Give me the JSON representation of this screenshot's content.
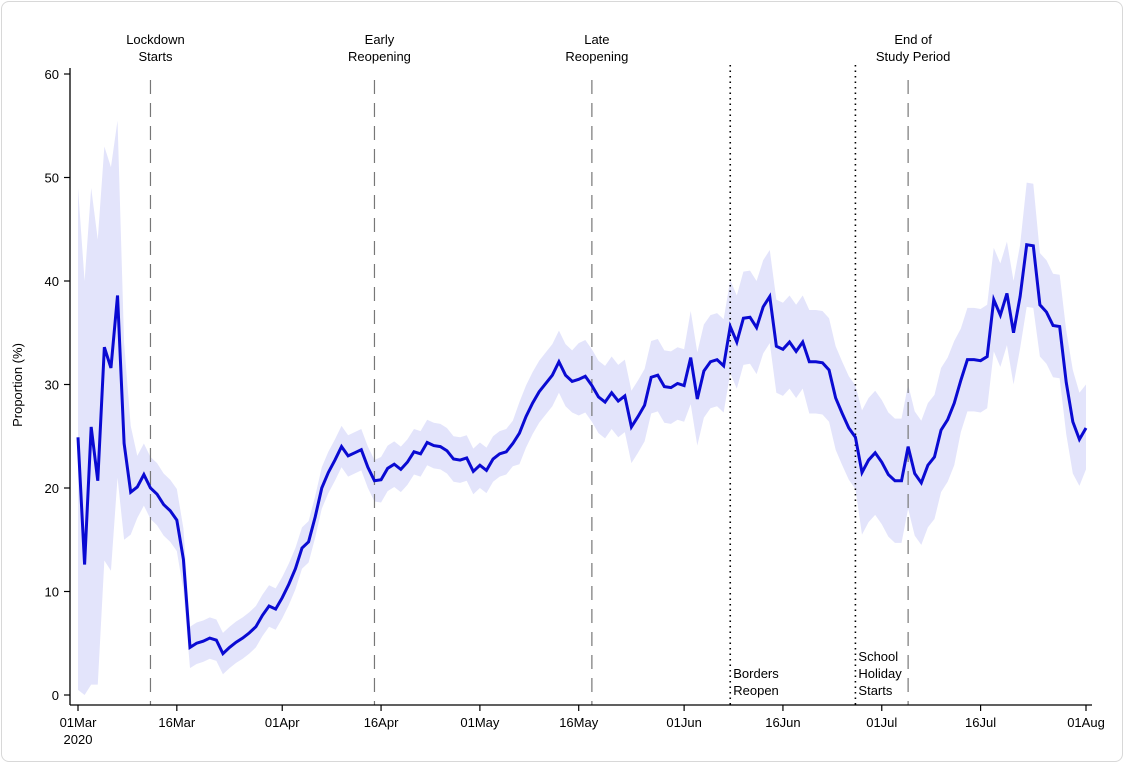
{
  "chart_data": {
    "type": "area",
    "title": "",
    "xlabel": "",
    "ylabel": "Proportion (%)",
    "ylim": [
      0,
      60
    ],
    "yticks": [
      0,
      10,
      20,
      30,
      40,
      50,
      60
    ],
    "xlim": [
      "2020-03-01",
      "2020-08-01"
    ],
    "xticks": [
      {
        "date": "2020-03-01",
        "label": "01Mar",
        "sublabel": "2020"
      },
      {
        "date": "2020-03-16",
        "label": "16Mar"
      },
      {
        "date": "2020-04-01",
        "label": "01Apr"
      },
      {
        "date": "2020-04-16",
        "label": "16Apr"
      },
      {
        "date": "2020-05-01",
        "label": "01May"
      },
      {
        "date": "2020-05-16",
        "label": "16May"
      },
      {
        "date": "2020-06-01",
        "label": "01Jun"
      },
      {
        "date": "2020-06-16",
        "label": "16Jun"
      },
      {
        "date": "2020-07-01",
        "label": "01Jul"
      },
      {
        "date": "2020-07-16",
        "label": "16Jul"
      },
      {
        "date": "2020-08-01",
        "label": "01Aug"
      }
    ],
    "grid": false,
    "colors": {
      "line": "#0a0ad2",
      "band": "#e3e4fb",
      "event": "#777777"
    },
    "events": [
      {
        "date": "2020-03-12",
        "style": "dashed",
        "label": [
          "Lockdown",
          "Starts"
        ],
        "position": "top"
      },
      {
        "date": "2020-04-15",
        "style": "dashed",
        "label": [
          "Early",
          "Reopening"
        ],
        "position": "top"
      },
      {
        "date": "2020-05-18",
        "style": "dashed",
        "label": [
          "Late",
          "Reopening"
        ],
        "position": "top"
      },
      {
        "date": "2020-07-05",
        "style": "dashed",
        "label": [
          "End of",
          "Study Period"
        ],
        "position": "top"
      },
      {
        "date": "2020-06-08",
        "style": "dotted",
        "label": [
          "Borders",
          "Reopen"
        ],
        "position": "bottom"
      },
      {
        "date": "2020-06-27",
        "style": "dotted",
        "label": [
          "School",
          "Holiday",
          "Starts"
        ],
        "position": "bottom"
      }
    ],
    "x": [
      "2020-03-01",
      "2020-03-02",
      "2020-03-03",
      "2020-03-04",
      "2020-03-05",
      "2020-03-06",
      "2020-03-07",
      "2020-03-08",
      "2020-03-09",
      "2020-03-10",
      "2020-03-11",
      "2020-03-12",
      "2020-03-13",
      "2020-03-14",
      "2020-03-15",
      "2020-03-16",
      "2020-03-17",
      "2020-03-18",
      "2020-03-19",
      "2020-03-20",
      "2020-03-21",
      "2020-03-22",
      "2020-03-23",
      "2020-03-24",
      "2020-03-25",
      "2020-03-26",
      "2020-03-27",
      "2020-03-28",
      "2020-03-29",
      "2020-03-30",
      "2020-03-31",
      "2020-04-01",
      "2020-04-02",
      "2020-04-03",
      "2020-04-04",
      "2020-04-05",
      "2020-04-06",
      "2020-04-07",
      "2020-04-08",
      "2020-04-09",
      "2020-04-10",
      "2020-04-11",
      "2020-04-12",
      "2020-04-13",
      "2020-04-14",
      "2020-04-15",
      "2020-04-16",
      "2020-04-17",
      "2020-04-18",
      "2020-04-19",
      "2020-04-20",
      "2020-04-21",
      "2020-04-22",
      "2020-04-23",
      "2020-04-24",
      "2020-04-25",
      "2020-04-26",
      "2020-04-27",
      "2020-04-28",
      "2020-04-29",
      "2020-04-30",
      "2020-05-01",
      "2020-05-02",
      "2020-05-03",
      "2020-05-04",
      "2020-05-05",
      "2020-05-06",
      "2020-05-07",
      "2020-05-08",
      "2020-05-09",
      "2020-05-10",
      "2020-05-11",
      "2020-05-12",
      "2020-05-13",
      "2020-05-14",
      "2020-05-15",
      "2020-05-16",
      "2020-05-17",
      "2020-05-18",
      "2020-05-19",
      "2020-05-20",
      "2020-05-21",
      "2020-05-22",
      "2020-05-23",
      "2020-05-24",
      "2020-05-25",
      "2020-05-26",
      "2020-05-27",
      "2020-05-28",
      "2020-05-29",
      "2020-05-30",
      "2020-05-31",
      "2020-06-01",
      "2020-06-02",
      "2020-06-03",
      "2020-06-04",
      "2020-06-05",
      "2020-06-06",
      "2020-06-07",
      "2020-06-08",
      "2020-06-09",
      "2020-06-10",
      "2020-06-11",
      "2020-06-12",
      "2020-06-13",
      "2020-06-14",
      "2020-06-15",
      "2020-06-16",
      "2020-06-17",
      "2020-06-18",
      "2020-06-19",
      "2020-06-20",
      "2020-06-21",
      "2020-06-22",
      "2020-06-23",
      "2020-06-24",
      "2020-06-25",
      "2020-06-26",
      "2020-06-27",
      "2020-06-28",
      "2020-06-29",
      "2020-06-30",
      "2020-07-01",
      "2020-07-02",
      "2020-07-03",
      "2020-07-04",
      "2020-07-05",
      "2020-07-06",
      "2020-07-07",
      "2020-07-08",
      "2020-07-09",
      "2020-07-10",
      "2020-07-11",
      "2020-07-12",
      "2020-07-13",
      "2020-07-14",
      "2020-07-15",
      "2020-07-16",
      "2020-07-17",
      "2020-07-18",
      "2020-07-19",
      "2020-07-20",
      "2020-07-21",
      "2020-07-22",
      "2020-07-23",
      "2020-07-24",
      "2020-07-25",
      "2020-07-26",
      "2020-07-27",
      "2020-07-28",
      "2020-07-29",
      "2020-07-30",
      "2020-07-31",
      "2020-08-01"
    ],
    "series": [
      {
        "values": [
          24.9,
          12.6,
          25.9,
          20.7,
          33.6,
          31.6,
          38.6,
          24.3,
          19.6,
          20.1,
          21.3,
          20.0,
          19.4,
          18.4,
          17.8,
          16.9,
          13.1,
          4.6,
          5.0,
          5.2,
          5.5,
          5.3,
          4.0,
          4.6,
          5.1,
          5.5,
          6.0,
          6.6,
          7.7,
          8.6,
          8.3,
          9.4,
          10.7,
          12.2,
          14.2,
          14.8,
          17.2,
          20.0,
          21.5,
          22.7,
          24.0,
          23.1,
          23.4,
          23.7,
          22.0,
          20.7,
          20.8,
          21.9,
          22.3,
          21.8,
          22.5,
          23.5,
          23.3,
          24.4,
          24.1,
          24.0,
          23.6,
          22.8,
          22.7,
          22.9,
          21.6,
          22.2,
          21.7,
          22.8,
          23.3,
          23.5,
          24.3,
          25.3,
          26.9,
          28.2,
          29.3,
          30.1,
          30.9,
          32.2,
          30.9,
          30.3,
          30.5,
          30.8,
          29.9,
          28.8,
          28.3,
          29.2,
          28.4,
          28.9,
          25.9,
          26.9,
          28.0,
          30.7,
          30.9,
          29.8,
          29.7,
          30.1,
          29.9,
          32.6,
          28.6,
          31.3,
          32.2,
          32.4,
          31.8,
          35.6,
          34.1,
          36.4,
          36.5,
          35.5,
          37.5,
          38.5,
          33.7,
          33.4,
          34.1,
          33.2,
          34.1,
          32.2,
          32.2,
          32.1,
          31.4,
          28.7,
          27.2,
          25.8,
          24.9,
          21.5,
          22.7,
          23.4,
          22.5,
          21.3,
          20.7,
          20.7,
          24.0,
          21.4,
          20.5,
          22.2,
          23.0,
          25.6,
          26.6,
          28.2,
          30.4,
          32.4,
          32.4,
          32.3,
          32.7,
          38.2,
          36.7,
          38.8,
          35.0,
          38.5,
          43.5,
          43.4,
          37.7,
          37.0,
          35.7,
          35.6,
          30.2,
          26.4,
          24.7,
          25.8
        ],
        "lower": [
          0.5,
          0,
          1,
          1,
          13,
          12,
          21,
          15,
          15.5,
          17.1,
          18.3,
          17.0,
          16.4,
          15.4,
          14.8,
          13.9,
          10.1,
          2.6,
          3.0,
          3.2,
          3.5,
          3.3,
          2.0,
          2.6,
          3.1,
          3.5,
          4.0,
          4.6,
          5.7,
          6.6,
          6.3,
          7.4,
          8.7,
          10.2,
          12.2,
          12.8,
          15.2,
          18.0,
          19.5,
          20.7,
          22.0,
          21.1,
          21.4,
          21.7,
          20.0,
          18.7,
          18.6,
          19.7,
          20.1,
          19.6,
          20.3,
          21.3,
          21.1,
          22.2,
          21.9,
          21.8,
          21.4,
          20.6,
          20.5,
          20.7,
          19.4,
          20.0,
          19.5,
          20.6,
          21.1,
          21.3,
          22.1,
          22.3,
          23.9,
          25.2,
          26.3,
          27.1,
          27.9,
          29.2,
          27.9,
          27.3,
          27.0,
          27.3,
          26.4,
          25.3,
          24.8,
          25.7,
          24.9,
          25.4,
          22.4,
          23.4,
          24.5,
          27.2,
          27.4,
          26.3,
          26.2,
          26.6,
          26.4,
          28.1,
          24.1,
          26.8,
          27.7,
          27.9,
          27.3,
          31.1,
          29.6,
          31.9,
          32.0,
          31.0,
          33.0,
          34.0,
          29.2,
          28.9,
          29.6,
          28.7,
          29.6,
          27.2,
          27.2,
          27.1,
          26.4,
          23.7,
          22.2,
          20.8,
          19.9,
          15.5,
          16.7,
          17.4,
          16.5,
          15.3,
          14.7,
          14.7,
          18.0,
          15.4,
          14.5,
          16.2,
          17.0,
          19.6,
          20.6,
          22.2,
          25.4,
          27.4,
          27.4,
          27.3,
          27.7,
          33.2,
          31.7,
          33.8,
          30.0,
          33.5,
          37.5,
          37.4,
          32.7,
          32.0,
          30.7,
          30.6,
          25.2,
          21.4,
          20.2,
          21.8
        ],
        "upper": [
          49,
          40,
          49,
          44,
          53,
          51,
          55.5,
          34,
          26,
          23.1,
          24.3,
          23.0,
          22.4,
          21.4,
          20.8,
          19.9,
          16.1,
          6.6,
          7.0,
          7.2,
          7.5,
          7.3,
          6.0,
          6.6,
          7.1,
          7.5,
          8.0,
          8.6,
          9.7,
          10.6,
          10.3,
          11.4,
          12.7,
          14.2,
          16.2,
          16.8,
          19.2,
          22.0,
          23.5,
          24.7,
          26.0,
          25.1,
          25.4,
          25.7,
          24.0,
          22.7,
          23.0,
          24.1,
          24.5,
          24.0,
          24.7,
          25.7,
          25.5,
          26.6,
          26.3,
          26.2,
          25.8,
          25.0,
          24.9,
          25.1,
          23.8,
          24.4,
          23.9,
          25.0,
          25.5,
          25.7,
          26.5,
          28.3,
          29.9,
          31.2,
          32.3,
          33.1,
          33.9,
          35.2,
          33.9,
          33.3,
          34.0,
          34.3,
          33.4,
          32.3,
          31.8,
          32.7,
          31.9,
          32.4,
          29.4,
          30.4,
          31.5,
          34.2,
          34.4,
          33.3,
          33.2,
          33.6,
          33.4,
          37.1,
          33.1,
          35.8,
          36.7,
          36.9,
          36.3,
          40.1,
          38.6,
          40.9,
          41.0,
          40.0,
          42.0,
          43.0,
          38.2,
          37.9,
          38.6,
          37.7,
          38.6,
          37.2,
          37.2,
          37.1,
          36.4,
          33.7,
          32.2,
          30.8,
          29.9,
          27.5,
          28.7,
          29.4,
          28.5,
          27.3,
          26.7,
          26.7,
          30.0,
          27.4,
          26.5,
          28.2,
          29.0,
          31.6,
          32.6,
          34.2,
          35.4,
          37.4,
          37.4,
          37.3,
          37.7,
          43.2,
          41.7,
          43.8,
          40.0,
          43.5,
          49.5,
          49.4,
          42.7,
          42.0,
          40.7,
          40.6,
          35.2,
          31.4,
          29.2,
          30.0
        ]
      }
    ]
  }
}
